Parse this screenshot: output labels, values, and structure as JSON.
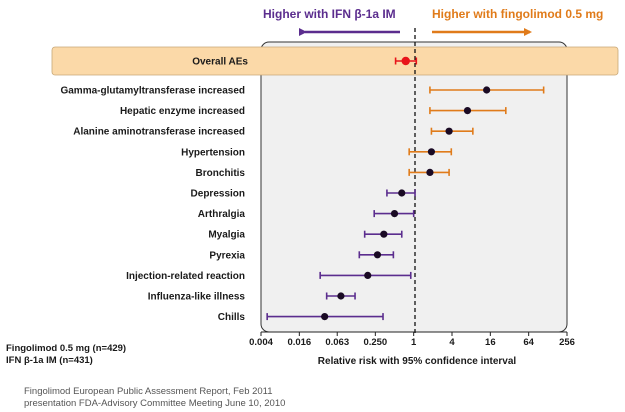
{
  "chart_data": {
    "type": "forest",
    "header_left": "Higher with IFN β-1a IM",
    "header_right": "Higher with fingolimod 0.5 mg",
    "xlabel": "Relative risk with 95% confidence interval",
    "xscale": "log2",
    "xlim": [
      0.004,
      256
    ],
    "x_ticks": [
      {
        "value": 0.004,
        "label": "0.004"
      },
      {
        "value": 0.016,
        "label": "0.016"
      },
      {
        "value": 0.063,
        "label": "0.063"
      },
      {
        "value": 0.25,
        "label": "0.250"
      },
      {
        "value": 1,
        "label": "1"
      },
      {
        "value": 4,
        "label": "4"
      },
      {
        "value": 16,
        "label": "16"
      },
      {
        "value": 64,
        "label": "64"
      },
      {
        "value": 256,
        "label": "256"
      }
    ],
    "reference_line": 1,
    "colors": {
      "favors_ifn": "#5b2d8e",
      "favors_fingolimod": "#e07b1a",
      "overall": "#e8141a",
      "point": "#1a0a24",
      "highlight": "#fbd9a8"
    },
    "rows": [
      {
        "label": "Overall AEs",
        "rr": 0.75,
        "lo": 0.52,
        "hi": 1.1,
        "group": "overall",
        "highlight": true
      },
      {
        "label": "Gamma-glutamyltransferase increased",
        "rr": 14,
        "lo": 1.8,
        "hi": 110,
        "group": "fingolimod"
      },
      {
        "label": "Hepatic enzyme increased",
        "rr": 7,
        "lo": 1.8,
        "hi": 28,
        "group": "fingolimod"
      },
      {
        "label": "Alanine aminotransferase increased",
        "rr": 3.6,
        "lo": 1.9,
        "hi": 8.5,
        "group": "fingolimod"
      },
      {
        "label": "Hypertension",
        "rr": 1.9,
        "lo": 0.85,
        "hi": 3.9,
        "group": "fingolimod"
      },
      {
        "label": "Bronchitis",
        "rr": 1.8,
        "lo": 0.85,
        "hi": 3.6,
        "group": "fingolimod"
      },
      {
        "label": "Depression",
        "rr": 0.65,
        "lo": 0.38,
        "hi": 1.05,
        "group": "ifn"
      },
      {
        "label": "Arthralgia",
        "rr": 0.5,
        "lo": 0.24,
        "hi": 1.0,
        "group": "ifn"
      },
      {
        "label": "Myalgia",
        "rr": 0.34,
        "lo": 0.17,
        "hi": 0.65,
        "group": "ifn"
      },
      {
        "label": "Pyrexia",
        "rr": 0.27,
        "lo": 0.14,
        "hi": 0.48,
        "group": "ifn"
      },
      {
        "label": "Injection-related reaction",
        "rr": 0.19,
        "lo": 0.034,
        "hi": 0.9,
        "group": "ifn"
      },
      {
        "label": "Influenza-like illness",
        "rr": 0.072,
        "lo": 0.043,
        "hi": 0.12,
        "group": "ifn"
      },
      {
        "label": "Chills",
        "rr": 0.04,
        "lo": 0.005,
        "hi": 0.33,
        "group": "ifn"
      }
    ]
  },
  "legend": {
    "line1": "Fingolimod 0.5 mg (n=429)",
    "line2": "IFN β-1a IM (n=431)"
  },
  "footer": {
    "line1": "Fingolimod European Public Assessment Report, Feb 2011",
    "line2": "presentation FDA-Advisory Committee Meeting June 10, 2010"
  }
}
